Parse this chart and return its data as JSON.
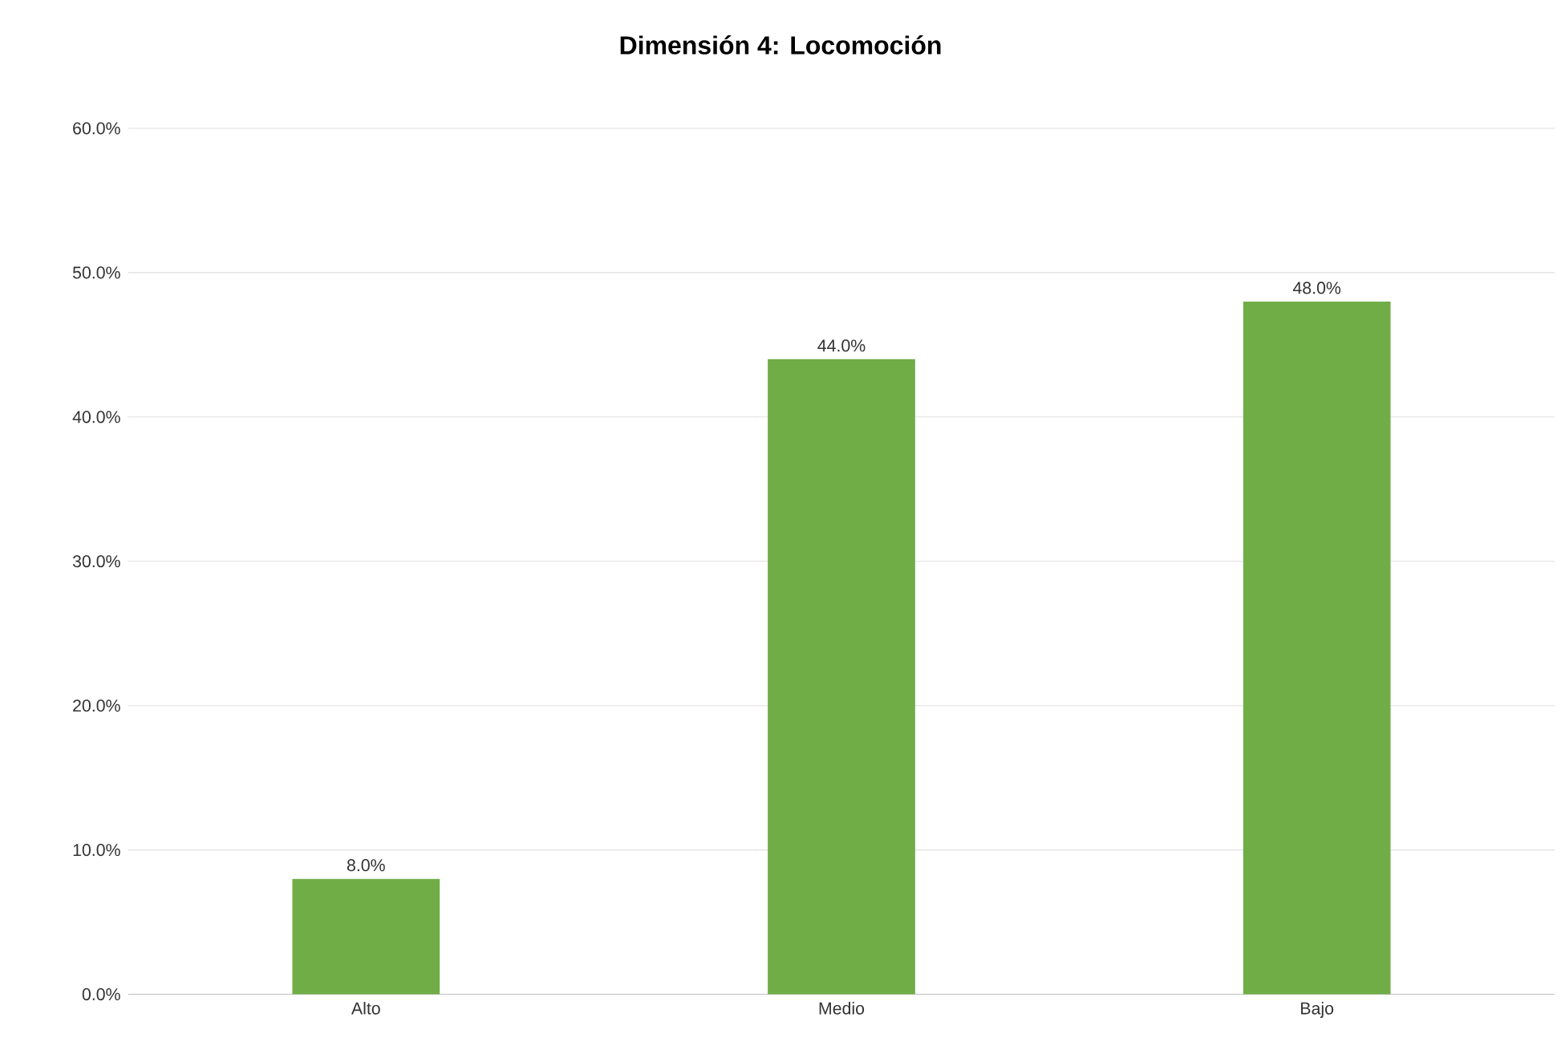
{
  "chart_data": {
    "type": "bar",
    "title": "**Dimensión 4: Locomoción**",
    "categories": [
      "Alto",
      "Medio",
      "Bajo"
    ],
    "values": [
      8,
      44,
      48
    ],
    "value_labels": [
      "8.0%",
      "44.0%",
      "48.0%"
    ],
    "color": "#70ad47",
    "ylim": [
      0,
      60
    ],
    "yticks": [
      {
        "value": 0,
        "label": "0.0%"
      },
      {
        "value": 10,
        "label": "10.0%"
      },
      {
        "value": 20,
        "label": "20.0%"
      },
      {
        "value": 30,
        "label": "30.0%"
      },
      {
        "value": 40,
        "label": "40.0%"
      },
      {
        "value": 50,
        "label": "50.0%"
      },
      {
        "value": 60,
        "label": "60.0%"
      }
    ],
    "grid": "y"
  }
}
